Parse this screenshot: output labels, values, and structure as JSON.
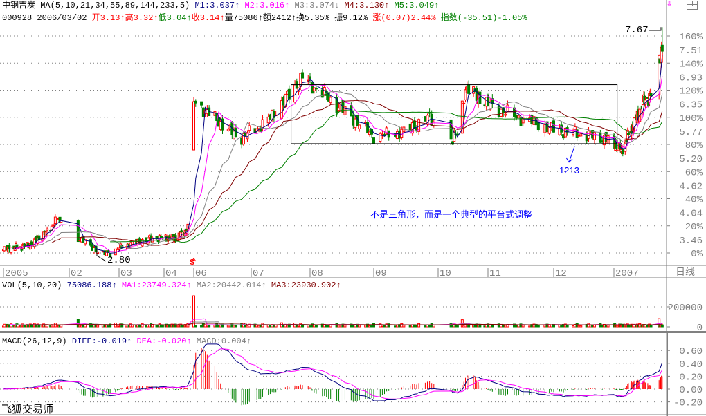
{
  "header": {
    "name": "中钢吉炭",
    "ma_label": "MA(5,10,21,34,55,89,144,233,5)",
    "m1": "M1:3.037",
    "m1_arrow": "↑",
    "m2": "M2:3.016",
    "m2_arrow": "↑",
    "m3": "M3:3.074",
    "m3_arrow": "↓",
    "m4": "M4:3.130",
    "m4_arrow": "↑",
    "m5": "M5:3.049",
    "m5_arrow": "↑",
    "code": "000928",
    "date": "2006/03/02",
    "open": "开3.13",
    "high": "高3.32",
    "low": "低3.04",
    "close": "收3.14",
    "volume": "量75086",
    "amount": "额2412",
    "turnover": "换5.35%",
    "amplitude": "振9.12%",
    "change": "涨(0.07)2.44%",
    "index": "指数(-35.51)-1.05%",
    "up_arrow": "↑"
  },
  "toolbar": {
    "pin_icon": "pin-down-icon",
    "window_icon": "window-layout-icon"
  },
  "price_axis": [
    {
      "pct": "160%",
      "price": "7.51"
    },
    {
      "pct": "140%",
      "price": "6.93"
    },
    {
      "pct": "120%",
      "price": "6.35"
    },
    {
      "pct": "100%",
      "price": "5.77"
    },
    {
      "pct": "80%",
      "price": "5.20"
    },
    {
      "pct": "60%",
      "price": "4.62"
    },
    {
      "pct": "40%",
      "price": "4.04"
    },
    {
      "pct": "20%",
      "price": "3.46"
    },
    {
      "pct": "0%",
      "price": ""
    }
  ],
  "date_axis": [
    "2005",
    "02",
    "03",
    "04",
    "06",
    "07",
    "08",
    "09",
    "10",
    "11",
    "12",
    "2007"
  ],
  "period": "日线",
  "annotations": {
    "high_label": "7.67",
    "low_label": "2.80",
    "note": "不是三角形，而是一个典型的平台式调整",
    "marker": "1213",
    "suspension": "S"
  },
  "volume": {
    "label": "VOL(5,10,20)",
    "value": "75086.188",
    "value_arrow": "↑",
    "ma1": "MA1:23749.324",
    "ma1_arrow": "↑",
    "ma2": "MA2:20442.014",
    "ma2_arrow": "↑",
    "ma3": "MA3:23930.902",
    "ma3_arrow": "↑",
    "axis": [
      "200000",
      "0"
    ]
  },
  "macd": {
    "label": "MACD(26,12,9)",
    "diff": "DIFF:-0.019",
    "diff_arrow": "↑",
    "dea": "DEA:-0.020",
    "dea_arrow": "↑",
    "macd": "MACD:0.004",
    "macd_arrow": "↑",
    "axis": [
      "0.60",
      "0.40",
      "0.20",
      "0.00",
      "-0.20"
    ]
  },
  "footer": "飞狐交易师",
  "colors": {
    "up": "#ff0000",
    "down": "#008000",
    "ma1": "#000080",
    "ma2": "#ff00ff",
    "ma3": "#808080",
    "ma4": "#800000",
    "ma5": "#008000",
    "note": "#0000ff"
  },
  "chart_data": {
    "type": "candlestick",
    "price_scale": {
      "base_price": 2.885,
      "ylim_pct": [
        0,
        160
      ]
    },
    "ma_periods": [
      5,
      10,
      21,
      34,
      55
    ],
    "volume_ma_periods": [
      5,
      10,
      20
    ],
    "price_path": [
      [
        "2005-12-01",
        2.95
      ],
      [
        "2005-12-28",
        3.05
      ],
      [
        "2006-01-12",
        3.3
      ],
      [
        "2006-01-22",
        3.62
      ],
      [
        "2006-02-08",
        3.15
      ],
      [
        "2006-02-20",
        2.85
      ],
      [
        "2006-03-06",
        3.05
      ],
      [
        "2006-03-25",
        3.2
      ],
      [
        "2006-04-15",
        3.2
      ],
      [
        "2006-04-28",
        3.4
      ],
      [
        "2006-06-01",
        6.1
      ],
      [
        "2006-06-10",
        5.8
      ],
      [
        "2006-06-25",
        5.3
      ],
      [
        "2006-07-10",
        5.7
      ],
      [
        "2006-07-20",
        6.2
      ],
      [
        "2006-07-28",
        6.6
      ],
      [
        "2006-08-06",
        6.3
      ],
      [
        "2006-08-20",
        5.8
      ],
      [
        "2006-09-01",
        5.35
      ],
      [
        "2006-09-15",
        5.45
      ],
      [
        "2006-09-26",
        5.75
      ],
      [
        "2006-10-10",
        5.3
      ],
      [
        "2006-10-13",
        5.4
      ],
      [
        "2006-10-18",
        6.4
      ],
      [
        "2006-10-31",
        6.05
      ],
      [
        "2006-11-15",
        5.75
      ],
      [
        "2006-12-01",
        5.5
      ],
      [
        "2006-12-15",
        5.4
      ],
      [
        "2006-12-28",
        5.3
      ],
      [
        "2007-01-10",
        5.05
      ],
      [
        "2007-01-25",
        5.6
      ],
      [
        "2007-02-08",
        6.1
      ],
      [
        "2007-02-20",
        6.3
      ],
      [
        "2007-03-02",
        7.3
      ]
    ],
    "high": 7.67,
    "low": 2.8,
    "volume_peak": 310000,
    "box": {
      "from": "2006-07-22",
      "to": "2007-01-05",
      "price_low": 5.2,
      "price_high": 6.45
    }
  }
}
